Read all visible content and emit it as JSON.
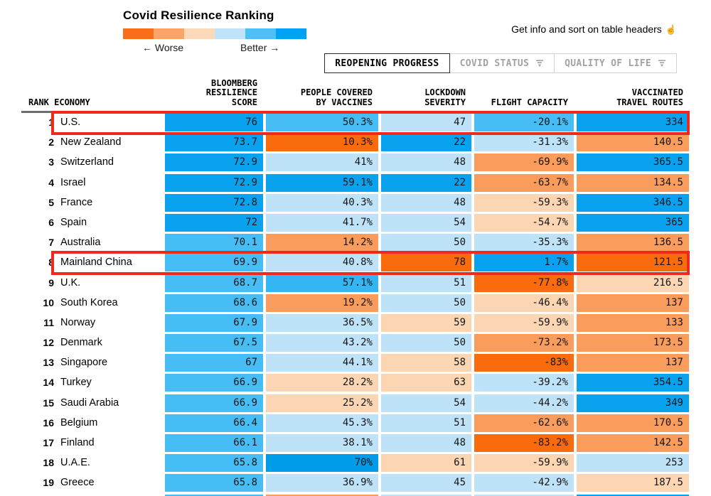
{
  "header": {
    "title": "Covid Resilience Ranking",
    "legend": {
      "worse": "← Worse",
      "better": "Better →",
      "gradient": [
        "#fb6e17",
        "#fca468",
        "#fcd9b9",
        "#bfe4fa",
        "#4fc0f7",
        "#00a3f3"
      ]
    },
    "hint": {
      "text": "Get info and sort on table headers",
      "icon": "☝"
    }
  },
  "tabs": [
    {
      "label": "REOPENING PROGRESS",
      "active": true,
      "filter_icon": false
    },
    {
      "label": "COVID STATUS",
      "active": false,
      "filter_icon": true
    },
    {
      "label": "QUALITY OF LIFE",
      "active": false,
      "filter_icon": true
    }
  ],
  "table": {
    "headers": [
      {
        "lines": [
          "RANK ECONOMY"
        ],
        "align": "left"
      },
      {
        "lines": [
          "BLOOMBERG",
          "RESILIENCE",
          "SCORE"
        ],
        "align": "right"
      },
      {
        "lines": [
          "PEOPLE COVERED",
          "BY VACCINES"
        ],
        "align": "right"
      },
      {
        "lines": [
          "LOCKDOWN",
          "SEVERITY"
        ],
        "align": "right"
      },
      {
        "lines": [
          "FLIGHT CAPACITY"
        ],
        "align": "right"
      },
      {
        "lines": [
          "VACCINATED",
          "TRAVEL ROUTES"
        ],
        "align": "right"
      }
    ],
    "rows": [
      {
        "rank": "1",
        "economy": "U.S.",
        "highlighted": true,
        "score": {
          "v": "76",
          "c": "#09a2ef"
        },
        "vaccines": {
          "v": "50.3%",
          "c": "#47bdf5"
        },
        "lockdown": {
          "v": "47",
          "c": "#bee3f9"
        },
        "flight": {
          "v": "-20.1%",
          "c": "#47bdf5"
        },
        "routes": {
          "v": "334",
          "c": "#09a2ef"
        }
      },
      {
        "rank": "2",
        "economy": "New Zealand",
        "highlighted": false,
        "score": {
          "v": "73.7",
          "c": "#09a2ef"
        },
        "vaccines": {
          "v": "10.3%",
          "c": "#f96b0d"
        },
        "lockdown": {
          "v": "22",
          "c": "#09a2ef"
        },
        "flight": {
          "v": "-31.3%",
          "c": "#bee3f9"
        },
        "routes": {
          "v": "140.5",
          "c": "#fa9c5b"
        }
      },
      {
        "rank": "3",
        "economy": "Switzerland",
        "highlighted": false,
        "score": {
          "v": "72.9",
          "c": "#09a2ef"
        },
        "vaccines": {
          "v": "41%",
          "c": "#bee3f9"
        },
        "lockdown": {
          "v": "48",
          "c": "#bee3f9"
        },
        "flight": {
          "v": "-69.9%",
          "c": "#fa9c5b"
        },
        "routes": {
          "v": "365.5",
          "c": "#09a2ef"
        }
      },
      {
        "rank": "4",
        "economy": "Israel",
        "highlighted": false,
        "score": {
          "v": "72.9",
          "c": "#09a2ef"
        },
        "vaccines": {
          "v": "59.1%",
          "c": "#09a2ef"
        },
        "lockdown": {
          "v": "22",
          "c": "#09a2ef"
        },
        "flight": {
          "v": "-63.7%",
          "c": "#fa9c5b"
        },
        "routes": {
          "v": "134.5",
          "c": "#fa9c5b"
        }
      },
      {
        "rank": "5",
        "economy": "France",
        "highlighted": false,
        "score": {
          "v": "72.8",
          "c": "#09a2ef"
        },
        "vaccines": {
          "v": "40.3%",
          "c": "#bee3f9"
        },
        "lockdown": {
          "v": "48",
          "c": "#bee3f9"
        },
        "flight": {
          "v": "-59.3%",
          "c": "#fcd5b3"
        },
        "routes": {
          "v": "346.5",
          "c": "#09a2ef"
        }
      },
      {
        "rank": "6",
        "economy": "Spain",
        "highlighted": false,
        "score": {
          "v": "72",
          "c": "#09a2ef"
        },
        "vaccines": {
          "v": "41.7%",
          "c": "#bee3f9"
        },
        "lockdown": {
          "v": "54",
          "c": "#bee3f9"
        },
        "flight": {
          "v": "-54.7%",
          "c": "#fcd5b3"
        },
        "routes": {
          "v": "365",
          "c": "#09a2ef"
        }
      },
      {
        "rank": "7",
        "economy": "Australia",
        "highlighted": false,
        "score": {
          "v": "70.1",
          "c": "#47bdf5"
        },
        "vaccines": {
          "v": "14.2%",
          "c": "#fa9c5b"
        },
        "lockdown": {
          "v": "50",
          "c": "#bee3f9"
        },
        "flight": {
          "v": "-35.3%",
          "c": "#bee3f9"
        },
        "routes": {
          "v": "136.5",
          "c": "#fa9c5b"
        }
      },
      {
        "rank": "8",
        "economy": "Mainland China",
        "highlighted": true,
        "score": {
          "v": "69.9",
          "c": "#47bdf5"
        },
        "vaccines": {
          "v": "40.8%",
          "c": "#bee3f9"
        },
        "lockdown": {
          "v": "78",
          "c": "#f96b0d"
        },
        "flight": {
          "v": "1.7%",
          "c": "#09a2ef"
        },
        "routes": {
          "v": "121.5",
          "c": "#f96b0d"
        }
      },
      {
        "rank": "9",
        "economy": "U.K.",
        "highlighted": false,
        "score": {
          "v": "68.7",
          "c": "#47bdf5"
        },
        "vaccines": {
          "v": "57.1%",
          "c": "#33b6f3"
        },
        "lockdown": {
          "v": "51",
          "c": "#bee3f9"
        },
        "flight": {
          "v": "-77.8%",
          "c": "#f96b0d"
        },
        "routes": {
          "v": "216.5",
          "c": "#fcd5b3"
        }
      },
      {
        "rank": "10",
        "economy": "South Korea",
        "highlighted": false,
        "score": {
          "v": "68.6",
          "c": "#47bdf5"
        },
        "vaccines": {
          "v": "19.2%",
          "c": "#fa9c5b"
        },
        "lockdown": {
          "v": "50",
          "c": "#bee3f9"
        },
        "flight": {
          "v": "-46.4%",
          "c": "#fcd5b3"
        },
        "routes": {
          "v": "137",
          "c": "#fa9c5b"
        }
      },
      {
        "rank": "11",
        "economy": "Norway",
        "highlighted": false,
        "score": {
          "v": "67.9",
          "c": "#47bdf5"
        },
        "vaccines": {
          "v": "36.5%",
          "c": "#bee3f9"
        },
        "lockdown": {
          "v": "59",
          "c": "#fcd5b3"
        },
        "flight": {
          "v": "-59.9%",
          "c": "#fcd5b3"
        },
        "routes": {
          "v": "133",
          "c": "#fa9c5b"
        }
      },
      {
        "rank": "12",
        "economy": "Denmark",
        "highlighted": false,
        "score": {
          "v": "67.5",
          "c": "#47bdf5"
        },
        "vaccines": {
          "v": "43.2%",
          "c": "#bee3f9"
        },
        "lockdown": {
          "v": "50",
          "c": "#bee3f9"
        },
        "flight": {
          "v": "-73.2%",
          "c": "#fa9c5b"
        },
        "routes": {
          "v": "173.5",
          "c": "#fa9c5b"
        }
      },
      {
        "rank": "13",
        "economy": "Singapore",
        "highlighted": false,
        "score": {
          "v": "67",
          "c": "#47bdf5"
        },
        "vaccines": {
          "v": "44.1%",
          "c": "#bee3f9"
        },
        "lockdown": {
          "v": "58",
          "c": "#fcd5b3"
        },
        "flight": {
          "v": "-83%",
          "c": "#f96b0d"
        },
        "routes": {
          "v": "137",
          "c": "#fa9c5b"
        }
      },
      {
        "rank": "14",
        "economy": "Turkey",
        "highlighted": false,
        "score": {
          "v": "66.9",
          "c": "#47bdf5"
        },
        "vaccines": {
          "v": "28.2%",
          "c": "#fcd5b3"
        },
        "lockdown": {
          "v": "63",
          "c": "#fcd5b3"
        },
        "flight": {
          "v": "-39.2%",
          "c": "#bee3f9"
        },
        "routes": {
          "v": "354.5",
          "c": "#09a2ef"
        }
      },
      {
        "rank": "15",
        "economy": "Saudi Arabia",
        "highlighted": false,
        "score": {
          "v": "66.9",
          "c": "#47bdf5"
        },
        "vaccines": {
          "v": "25.2%",
          "c": "#fcd5b3"
        },
        "lockdown": {
          "v": "54",
          "c": "#bee3f9"
        },
        "flight": {
          "v": "-44.2%",
          "c": "#bee3f9"
        },
        "routes": {
          "v": "349",
          "c": "#09a2ef"
        }
      },
      {
        "rank": "16",
        "economy": "Belgium",
        "highlighted": false,
        "score": {
          "v": "66.4",
          "c": "#47bdf5"
        },
        "vaccines": {
          "v": "45.3%",
          "c": "#bee3f9"
        },
        "lockdown": {
          "v": "51",
          "c": "#bee3f9"
        },
        "flight": {
          "v": "-62.6%",
          "c": "#fa9c5b"
        },
        "routes": {
          "v": "170.5",
          "c": "#fa9c5b"
        }
      },
      {
        "rank": "17",
        "economy": "Finland",
        "highlighted": false,
        "score": {
          "v": "66.1",
          "c": "#47bdf5"
        },
        "vaccines": {
          "v": "38.1%",
          "c": "#bee3f9"
        },
        "lockdown": {
          "v": "48",
          "c": "#bee3f9"
        },
        "flight": {
          "v": "-83.2%",
          "c": "#f96b0d"
        },
        "routes": {
          "v": "142.5",
          "c": "#fa9c5b"
        }
      },
      {
        "rank": "18",
        "economy": "U.A.E.",
        "highlighted": false,
        "score": {
          "v": "65.8",
          "c": "#47bdf5"
        },
        "vaccines": {
          "v": "70%",
          "c": "#009ce9"
        },
        "lockdown": {
          "v": "61",
          "c": "#fcd5b3"
        },
        "flight": {
          "v": "-59.9%",
          "c": "#fcd5b3"
        },
        "routes": {
          "v": "253",
          "c": "#bee3f9"
        }
      },
      {
        "rank": "19",
        "economy": "Greece",
        "highlighted": false,
        "score": {
          "v": "65.8",
          "c": "#47bdf5"
        },
        "vaccines": {
          "v": "36.9%",
          "c": "#bee3f9"
        },
        "lockdown": {
          "v": "45",
          "c": "#bee3f9"
        },
        "flight": {
          "v": "-42.9%",
          "c": "#bee3f9"
        },
        "routes": {
          "v": "187.5",
          "c": "#fcd5b3"
        }
      }
    ],
    "partial_row": [
      "#47bdf5",
      "#fa9c5b",
      "#bee3f9",
      "#bee3f9",
      "#09a2ef"
    ]
  },
  "annotations": {
    "highlight_color": "#ee2a1f"
  }
}
